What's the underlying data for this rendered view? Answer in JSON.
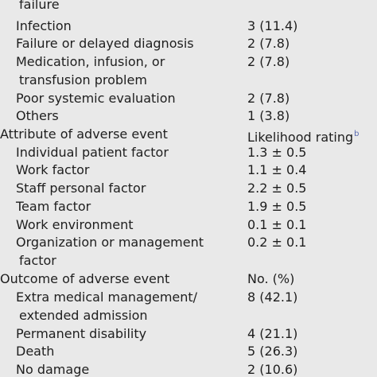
{
  "table": {
    "rows": [
      {
        "label": "failure",
        "value": ""
      },
      {
        "label": "Infection",
        "value": "3 (11.4)"
      },
      {
        "label": "Failure or delayed diagnosis",
        "value": "2 (7.8)"
      },
      {
        "label": "Medication, infusion, or",
        "value": "2 (7.8)"
      },
      {
        "label": "transfusion problem",
        "value": ""
      },
      {
        "label": "Poor systemic evaluation",
        "value": "2 (7.8)"
      },
      {
        "label": "Others",
        "value": "1 (3.8)"
      },
      {
        "label": "Attribute of adverse event",
        "value": "Likelihood rating",
        "note": "b"
      },
      {
        "label": "Individual patient factor",
        "value": "1.3 ± 0.5"
      },
      {
        "label": "Work factor",
        "value": "1.1 ± 0.4"
      },
      {
        "label": "Staff personal factor",
        "value": "2.2 ± 0.5"
      },
      {
        "label": "Team factor",
        "value": "1.9 ± 0.5"
      },
      {
        "label": "Work environment",
        "value": "0.1 ± 0.1"
      },
      {
        "label": "Organization or management",
        "value": "0.2 ± 0.1"
      },
      {
        "label": "factor",
        "value": ""
      },
      {
        "label": "Outcome of adverse event",
        "value": "No. (%)"
      },
      {
        "label": "Extra medical management/",
        "value": "8 (42.1)"
      },
      {
        "label": "extended admission",
        "value": ""
      },
      {
        "label": "Permanent disability",
        "value": "4 (21.1)"
      },
      {
        "label": "Death",
        "value": "5 (26.3)"
      },
      {
        "label": "No damage",
        "value": "2 (10.6)"
      }
    ]
  }
}
